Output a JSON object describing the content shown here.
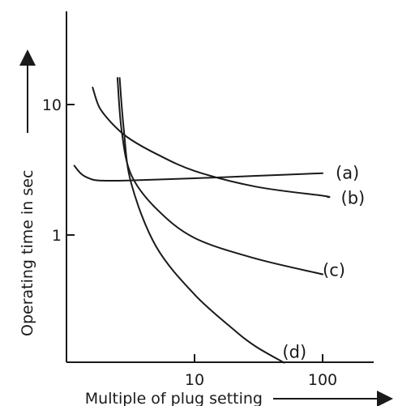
{
  "chart_data": {
    "type": "line",
    "title": "",
    "xlabel": "Multiple of plug setting",
    "ylabel": "Operating time in sec",
    "x_scale": "log",
    "y_scale": "log",
    "xlim": [
      1,
      500
    ],
    "ylim": [
      0.075,
      50
    ],
    "x_ticks": [
      {
        "value": 10,
        "label": "10"
      },
      {
        "value": 100,
        "label": "100"
      }
    ],
    "y_ticks": [
      {
        "value": 1,
        "label": "1"
      },
      {
        "value": 10,
        "label": "10"
      }
    ],
    "grid": false,
    "series": [
      {
        "name": "(a)",
        "points": [
          [
            1.15,
            3.4
          ],
          [
            1.3,
            2.95
          ],
          [
            1.5,
            2.72
          ],
          [
            1.8,
            2.62
          ],
          [
            3,
            2.62
          ],
          [
            10,
            2.72
          ],
          [
            30,
            2.84
          ],
          [
            100,
            2.98
          ]
        ]
      },
      {
        "name": "(b)",
        "points": [
          [
            1.6,
            13.5
          ],
          [
            1.8,
            9.6
          ],
          [
            2.2,
            7.4
          ],
          [
            3,
            5.6
          ],
          [
            5,
            4.2
          ],
          [
            10,
            3.1
          ],
          [
            30,
            2.35
          ],
          [
            100,
            2.0
          ],
          [
            110,
            1.95
          ]
        ]
      },
      {
        "name": "(c)",
        "points": [
          [
            2.5,
            16
          ],
          [
            2.7,
            6.2
          ],
          [
            3.2,
            2.9
          ],
          [
            5,
            1.6
          ],
          [
            10,
            0.95
          ],
          [
            30,
            0.66
          ],
          [
            100,
            0.5
          ]
        ]
      },
      {
        "name": "(d)",
        "points": [
          [
            2.6,
            16
          ],
          [
            2.8,
            6.5
          ],
          [
            3.2,
            2.5
          ],
          [
            5,
            0.82
          ],
          [
            10,
            0.35
          ],
          [
            20,
            0.19
          ],
          [
            30,
            0.14
          ],
          [
            50,
            0.105
          ]
        ]
      }
    ]
  }
}
